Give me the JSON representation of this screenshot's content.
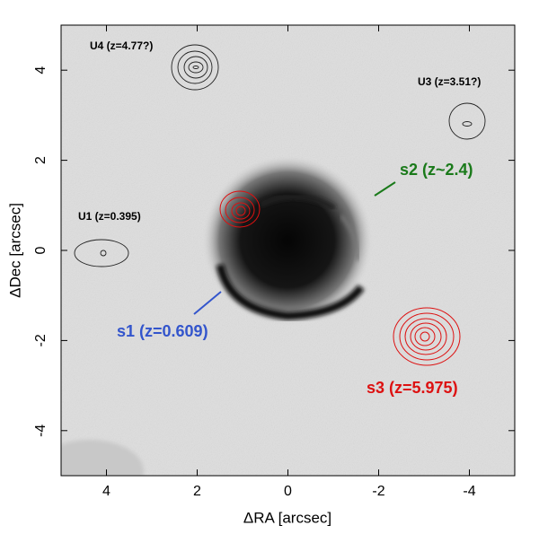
{
  "chart_data": {
    "type": "image",
    "x_label": "ΔRA [arcsec]",
    "y_label": "ΔDec [arcsec]",
    "xlim": [
      5,
      -5
    ],
    "ylim": [
      -5,
      5
    ],
    "xticks": [
      4,
      2,
      0,
      -2,
      -4
    ],
    "yticks": [
      -4,
      -2,
      0,
      2,
      4
    ],
    "annotations": [
      {
        "text": "U4 (z=4.77?)",
        "color": "#000000"
      },
      {
        "text": "U3 (z=3.51?)",
        "color": "#000000"
      },
      {
        "text": "U1 (z=0.395)",
        "color": "#000000"
      },
      {
        "text": "s2 (z~2.4)",
        "color": "#1a7a1a"
      },
      {
        "text": "s1 (z=0.609)",
        "color": "#3355cc"
      },
      {
        "text": "s3 (z=5.975)",
        "color": "#dd1111"
      }
    ]
  }
}
